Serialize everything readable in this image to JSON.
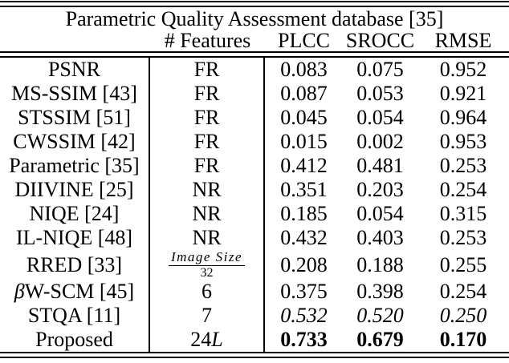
{
  "table": {
    "title": "Parametric Quality Assessment database [35]",
    "columns": {
      "method": "",
      "features": "# Features",
      "plcc": "PLCC",
      "srocc": "SROCC",
      "rmse": "RMSE"
    },
    "rows": [
      {
        "method": "PSNR",
        "features": "FR",
        "plcc": "0.083",
        "srocc": "0.075",
        "rmse": "0.952"
      },
      {
        "method": "MS-SSIM [43]",
        "features": "FR",
        "plcc": "0.087",
        "srocc": "0.053",
        "rmse": "0.921"
      },
      {
        "method": "STSSIM [51]",
        "features": "FR",
        "plcc": "0.045",
        "srocc": "0.054",
        "rmse": "0.964"
      },
      {
        "method": "CWSSIM [42]",
        "features": "FR",
        "plcc": "0.015",
        "srocc": "0.002",
        "rmse": "0.953"
      },
      {
        "method": "Parametric [35]",
        "features": "FR",
        "plcc": "0.412",
        "srocc": "0.481",
        "rmse": "0.253"
      },
      {
        "method": "DIIVINE [25]",
        "features": "NR",
        "plcc": "0.351",
        "srocc": "0.203",
        "rmse": "0.254"
      },
      {
        "method": "NIQE [24]",
        "features": "NR",
        "plcc": "0.185",
        "srocc": "0.054",
        "rmse": "0.315"
      },
      {
        "method": "IL-NIQE [48]",
        "features": "NR",
        "plcc": "0.432",
        "srocc": "0.403",
        "rmse": "0.253"
      },
      {
        "method": "RRED [33]",
        "features_numerator": "Image Size",
        "features_denominator": "32",
        "plcc": "0.208",
        "srocc": "0.188",
        "rmse": "0.255"
      },
      {
        "method_beta": "β",
        "method_rest": "W-SCM [45]",
        "features": "6",
        "plcc": "0.375",
        "srocc": "0.398",
        "rmse": "0.254"
      },
      {
        "method": "STQA [11]",
        "features": "7",
        "plcc": "0.532",
        "srocc": "0.520",
        "rmse": "0.250"
      },
      {
        "method": "Proposed",
        "features_number": "24",
        "features_variable": "L",
        "plcc": "0.733",
        "srocc": "0.679",
        "rmse": "0.170"
      }
    ]
  }
}
